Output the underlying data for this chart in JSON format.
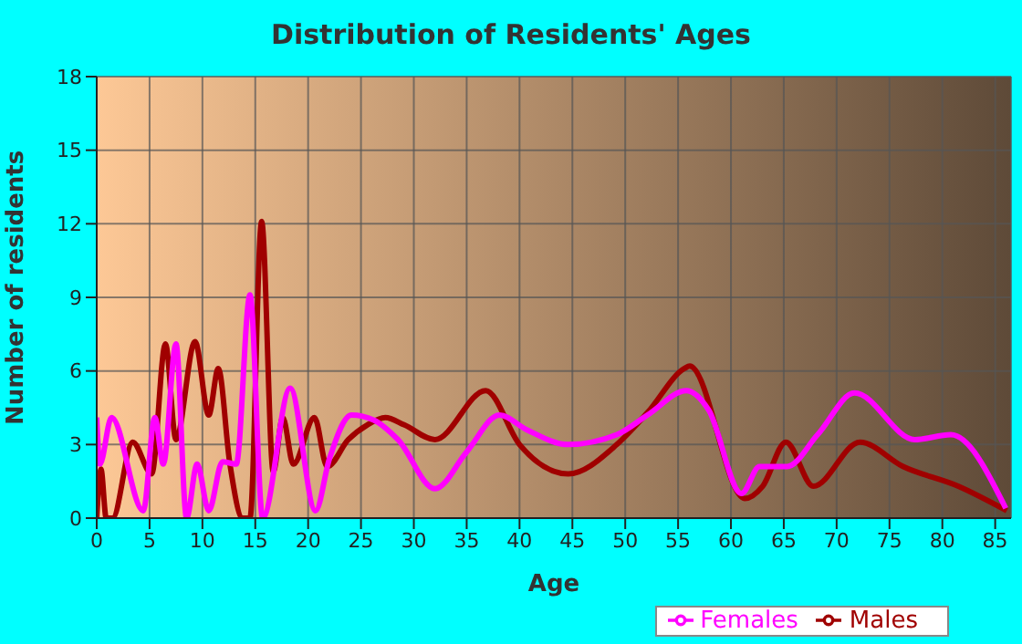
{
  "chart_data": {
    "type": "line",
    "title": "Distribution of Residents' Ages",
    "xlabel": "Age",
    "ylabel": "Number of residents",
    "xlim": [
      0,
      86.5
    ],
    "xticks": [
      0,
      5,
      10,
      15,
      20,
      25,
      30,
      35,
      40,
      45,
      50,
      55,
      60,
      65,
      70,
      75,
      80,
      85
    ],
    "ylim": [
      0,
      18
    ],
    "yticks": [
      0,
      3,
      6,
      9,
      12,
      15,
      18
    ],
    "grid": true,
    "legend": "bottom",
    "marker": "none",
    "line_style": "solid",
    "series": [
      {
        "name": "Males",
        "color": "#a00000",
        "x": [
          0,
          0.4,
          0.9,
          1.5,
          3.4,
          5.2,
          6.5,
          7.5,
          9.3,
          10.6,
          11.5,
          12.6,
          13.8,
          14.5,
          15.6,
          16.7,
          17.6,
          18.6,
          20.6,
          21.8,
          23.8,
          25.6,
          27.3,
          29.1,
          32,
          36.8,
          40,
          44.6,
          49.2,
          52.1,
          55.6,
          56.1,
          61.3,
          63,
          65.2,
          67.8,
          72.2,
          76.3,
          81.5,
          86.1
        ],
        "values": [
          0,
          2,
          0,
          0,
          3.1,
          1.8,
          7.1,
          3.2,
          7.2,
          4.2,
          6.1,
          2.2,
          0,
          0,
          12.1,
          1.9,
          4.1,
          2.2,
          4.1,
          2.1,
          3.2,
          3.8,
          4.1,
          3.8,
          3.2,
          5.2,
          3,
          1.8,
          3,
          4.3,
          6.1,
          6.2,
          0.8,
          1.3,
          3.1,
          1.3,
          3.1,
          2.1,
          1.3,
          0.3
        ]
      },
      {
        "name": "Females",
        "color": "#ff00ff",
        "x": [
          0,
          0.3,
          1.4,
          4.4,
          5.5,
          6.3,
          7.5,
          8.5,
          9.5,
          10.6,
          11.9,
          13.2,
          14.5,
          15.7,
          18.3,
          20.7,
          22,
          24.1,
          26.2,
          28.5,
          32,
          35,
          38.1,
          40.7,
          44.6,
          49.2,
          52.1,
          55.8,
          57.9,
          61,
          62.7,
          65.3,
          68.2,
          71.7,
          77.4,
          80.8,
          86
        ],
        "values": [
          4.1,
          2.2,
          4.1,
          0.3,
          4.1,
          2.2,
          7.1,
          0,
          2.2,
          0.3,
          2.3,
          2.2,
          9.1,
          0,
          5.3,
          0.3,
          2.4,
          4.2,
          4,
          3.2,
          1.2,
          2.7,
          4.2,
          3.6,
          3,
          3.4,
          4.2,
          5.2,
          4.4,
          1,
          2.1,
          2.1,
          3.4,
          5.1,
          3.2,
          3.4,
          0.4
        ]
      }
    ]
  }
}
